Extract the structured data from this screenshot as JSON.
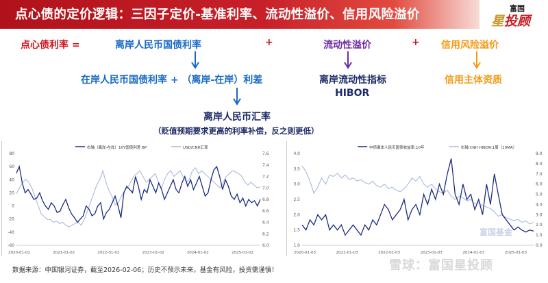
{
  "header": {
    "title": "点心债的定价逻辑：三因子定价-基准利率、流动性溢价、信用风险溢价",
    "logo_top": "富国",
    "logo_main_star": "星",
    "logo_main_rest": "投顾"
  },
  "formula": {
    "lhs": "点心债利率 =",
    "term1": "离岸人民币国债利率",
    "plus1": "+",
    "term2": "流动性溢价",
    "plus2": "+",
    "term3": "信用风险溢价",
    "term1_sub": "在岸人民币国债利率 + （离岸-在岸）利差",
    "term1_sub2": "离岸人民币汇率",
    "term1_sub2_note": "（贬值预期要求更高的利率补偿，反之则更低）",
    "term2_sub": "离岸流动性指标",
    "term2_sub_b": "HIBOR",
    "term3_sub": "信用主体资质"
  },
  "colors": {
    "red": "#d0121b",
    "blue": "#1668c4",
    "purple": "#6d2aa0",
    "orange": "#f39a14",
    "navy": "#1c2a66",
    "series_dark": "#1a2b80",
    "series_light": "#a9b8dc"
  },
  "chart_data": [
    {
      "type": "line",
      "legend": [
        "右轴（离岸-在岸）10Y国债利差 BP",
        "USD/CNH汇率"
      ],
      "x_ticks": [
        "2020-01-02",
        "2021-01-02",
        "2022-01-02",
        "2023-01-02",
        "2024-01-02",
        "2025-01-02"
      ],
      "y_left_ticks": [
        "80",
        "60",
        "40",
        "20",
        "0",
        "-20",
        "-40",
        "-60"
      ],
      "y_right_ticks": [
        "7.6",
        "7.4",
        "7.2",
        "7.0",
        "6.8",
        "6.6",
        "6.4",
        "6.2",
        "6.0"
      ],
      "ylim_left": [
        -60,
        80
      ],
      "ylim_right": [
        6.0,
        7.6
      ],
      "series": [
        {
          "name": "右轴（离岸-在岸）10Y国债利差 BP",
          "axis": "left",
          "values": [
            50,
            60,
            35,
            20,
            25,
            18,
            10,
            12,
            20,
            8,
            0,
            -5,
            5,
            0,
            -10,
            -8,
            2,
            10,
            -3,
            -12,
            -18,
            -25,
            -20,
            -15,
            0,
            -5,
            -15,
            -12,
            0,
            5,
            -20,
            -10,
            -5,
            5,
            15,
            0,
            -18,
            20,
            30,
            25,
            20,
            45,
            30,
            10,
            25,
            20,
            40,
            30,
            20,
            35,
            25,
            10,
            20,
            30,
            40,
            25,
            20,
            35,
            45,
            30,
            40,
            25,
            35,
            45,
            30,
            15,
            20,
            40,
            55,
            60,
            45,
            25,
            40,
            30,
            15,
            10,
            18,
            5,
            12,
            0,
            10,
            5,
            8,
            0,
            10
          ]
        },
        {
          "name": "USD/CNH汇率",
          "axis": "right",
          "values": [
            6.9,
            7.0,
            7.1,
            7.15,
            7.1,
            7.0,
            6.85,
            6.7,
            6.55,
            6.5,
            6.45,
            6.45,
            6.4,
            6.42,
            6.38,
            6.4,
            6.35,
            6.32,
            6.35,
            6.38,
            6.4,
            6.35,
            6.45,
            6.6,
            6.75,
            6.9,
            7.05,
            7.15,
            7.3,
            7.1,
            6.95,
            6.85,
            6.7,
            6.75,
            6.85,
            6.95,
            7.0,
            7.1,
            7.2,
            7.25,
            7.3,
            7.2,
            7.1,
            7.15,
            7.2,
            7.25,
            7.1,
            7.0,
            7.15,
            7.25,
            7.3,
            7.2,
            7.25,
            7.3,
            7.2,
            7.1,
            7.15,
            7.3,
            7.35,
            7.25,
            7.3,
            7.25,
            7.2,
            7.15,
            7.1,
            7.05,
            7.0,
            7.1,
            7.2,
            7.25,
            7.3,
            7.28,
            7.25,
            7.2,
            7.1,
            7.05,
            7.1,
            7.05,
            7.0,
            7.02
          ]
        }
      ]
    },
    {
      "type": "line",
      "legend": [
        "中债离岸人民币国债收益率:10年",
        "右轴 CNH HIBOR:1周（10MA）"
      ],
      "x_ticks": [
        "2020-01-03",
        "2021-01-03",
        "2022-01-03",
        "2023-01-03",
        "2024-01-03",
        "2025-01-03"
      ],
      "y_left_ticks": [
        "4.0",
        "3.5",
        "3.0",
        "2.5",
        "2.0",
        "1.5",
        "1.0"
      ],
      "y_right_ticks": [
        "9.0",
        "8.0",
        "7.0",
        "6.0",
        "5.0",
        "4.0",
        "3.0",
        "2.0",
        "1.0",
        "0.0"
      ],
      "ylim_left": [
        1.0,
        4.0
      ],
      "ylim_right": [
        0.0,
        9.0
      ],
      "series": [
        {
          "name": "中债离岸人民币国债收益率:10年",
          "axis": "left",
          "values": [
            3.6,
            3.4,
            3.1,
            2.7,
            2.9,
            3.2,
            3.0,
            3.3,
            3.25,
            3.35,
            3.2,
            3.3,
            3.15,
            3.2,
            3.1,
            3.15,
            3.05,
            3.0,
            3.1,
            2.95,
            2.9,
            3.0,
            2.85,
            2.9,
            2.8,
            2.75,
            2.85,
            3.0,
            3.2,
            3.1,
            3.25,
            3.0,
            2.9,
            3.0,
            2.85,
            2.75,
            2.7,
            2.8,
            2.6,
            2.5,
            2.6,
            2.55,
            2.45,
            2.5,
            2.35,
            2.4,
            2.3,
            2.25,
            2.2,
            2.1,
            1.95,
            2.0,
            1.9,
            1.85,
            1.8,
            1.85,
            1.75,
            1.8,
            1.7,
            1.75
          ]
        },
        {
          "name": "右轴 CNH HIBOR:1周（10MA）",
          "axis": "right",
          "values": [
            2.0,
            1.5,
            2.5,
            2.0,
            3.0,
            2.5,
            3.0,
            1.5,
            2.0,
            1.5,
            2.0,
            1.0,
            1.5,
            2.0,
            1.5,
            1.0,
            2.0,
            1.5,
            2.5,
            2.0,
            3.0,
            4.0,
            3.5,
            2.5,
            3.0,
            3.5,
            4.5,
            2.5,
            3.5,
            4.0,
            3.0,
            5.0,
            4.0,
            5.5,
            4.5,
            6.0,
            5.0,
            7.0,
            8.5,
            5.0,
            4.0,
            6.0,
            4.5,
            5.0,
            3.5,
            4.5,
            3.0,
            6.0,
            4.0,
            7.0,
            5.0,
            3.0,
            2.5,
            2.0,
            1.5,
            1.8,
            1.5,
            1.3,
            1.5,
            1.4
          ]
        }
      ]
    }
  ],
  "footer": {
    "source": "数据来源：中国银河证券，截至2026-02-06；历史不预示未来，基金有风险，投资需谨慎！"
  },
  "watermark": {
    "text": "雪球：富国星投顾",
    "chart_wm": "富国基金"
  }
}
